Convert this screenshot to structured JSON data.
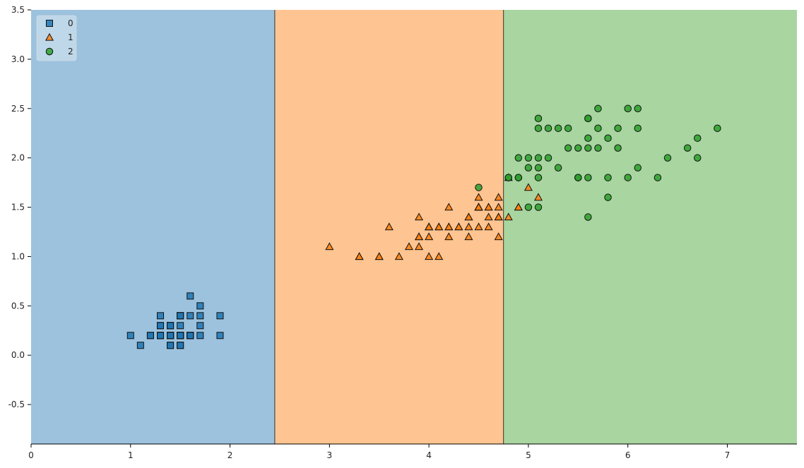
{
  "chart_data": {
    "type": "scatter",
    "title": "",
    "xlabel": "",
    "ylabel": "",
    "xlim": [
      0,
      7.7
    ],
    "ylim": [
      -0.9,
      3.5
    ],
    "grid": false,
    "legend_position": "top-left",
    "x_ticks": [
      0,
      1,
      2,
      3,
      4,
      5,
      6,
      7
    ],
    "y_ticks": [
      -0.5,
      0.0,
      0.5,
      1.0,
      1.5,
      2.0,
      2.5,
      3.0,
      3.5
    ],
    "x_tick_labels": [
      "0",
      "1",
      "2",
      "3",
      "4",
      "5",
      "6",
      "7"
    ],
    "y_tick_labels": [
      "-0.5",
      "0.0",
      "0.5",
      "1.0",
      "1.5",
      "2.0",
      "2.5",
      "3.0",
      "3.5"
    ],
    "decision_regions": [
      {
        "class": "0",
        "x_from": 0,
        "x_to": 2.45,
        "color": "#9cc2de"
      },
      {
        "class": "1",
        "x_from": 2.45,
        "x_to": 4.75,
        "color": "#fec491"
      },
      {
        "class": "2",
        "x_from": 4.75,
        "x_to": 7.7,
        "color": "#a8d5a0"
      }
    ],
    "series": [
      {
        "name": "0",
        "marker": "square",
        "color": "#1f77b4",
        "points": [
          [
            1.4,
            0.2
          ],
          [
            1.4,
            0.2
          ],
          [
            1.3,
            0.2
          ],
          [
            1.5,
            0.2
          ],
          [
            1.4,
            0.2
          ],
          [
            1.7,
            0.4
          ],
          [
            1.4,
            0.3
          ],
          [
            1.5,
            0.2
          ],
          [
            1.4,
            0.2
          ],
          [
            1.5,
            0.1
          ],
          [
            1.5,
            0.2
          ],
          [
            1.6,
            0.2
          ],
          [
            1.4,
            0.1
          ],
          [
            1.1,
            0.1
          ],
          [
            1.2,
            0.2
          ],
          [
            1.5,
            0.4
          ],
          [
            1.3,
            0.4
          ],
          [
            1.4,
            0.3
          ],
          [
            1.7,
            0.3
          ],
          [
            1.5,
            0.3
          ],
          [
            1.7,
            0.2
          ],
          [
            1.5,
            0.4
          ],
          [
            1.0,
            0.2
          ],
          [
            1.7,
            0.5
          ],
          [
            1.9,
            0.2
          ],
          [
            1.6,
            0.2
          ],
          [
            1.6,
            0.4
          ],
          [
            1.5,
            0.2
          ],
          [
            1.4,
            0.2
          ],
          [
            1.6,
            0.2
          ],
          [
            1.6,
            0.2
          ],
          [
            1.5,
            0.4
          ],
          [
            1.5,
            0.1
          ],
          [
            1.4,
            0.2
          ],
          [
            1.5,
            0.2
          ],
          [
            1.2,
            0.2
          ],
          [
            1.3,
            0.2
          ],
          [
            1.4,
            0.1
          ],
          [
            1.3,
            0.2
          ],
          [
            1.5,
            0.2
          ],
          [
            1.3,
            0.3
          ],
          [
            1.3,
            0.3
          ],
          [
            1.3,
            0.2
          ],
          [
            1.6,
            0.6
          ],
          [
            1.9,
            0.4
          ],
          [
            1.4,
            0.3
          ],
          [
            1.6,
            0.2
          ],
          [
            1.4,
            0.2
          ],
          [
            1.5,
            0.2
          ],
          [
            1.4,
            0.2
          ]
        ]
      },
      {
        "name": "1",
        "marker": "triangle",
        "color": "#ff7f0e",
        "points": [
          [
            4.7,
            1.4
          ],
          [
            4.5,
            1.5
          ],
          [
            4.9,
            1.5
          ],
          [
            4.0,
            1.3
          ],
          [
            4.6,
            1.5
          ],
          [
            4.5,
            1.3
          ],
          [
            4.7,
            1.6
          ],
          [
            3.3,
            1.0
          ],
          [
            4.6,
            1.3
          ],
          [
            3.9,
            1.4
          ],
          [
            3.5,
            1.0
          ],
          [
            4.2,
            1.5
          ],
          [
            4.0,
            1.0
          ],
          [
            4.7,
            1.4
          ],
          [
            3.6,
            1.3
          ],
          [
            4.4,
            1.4
          ],
          [
            4.5,
            1.5
          ],
          [
            4.1,
            1.0
          ],
          [
            4.5,
            1.5
          ],
          [
            3.9,
            1.1
          ],
          [
            4.8,
            1.8
          ],
          [
            4.0,
            1.3
          ],
          [
            4.9,
            1.5
          ],
          [
            4.7,
            1.2
          ],
          [
            4.3,
            1.3
          ],
          [
            4.4,
            1.4
          ],
          [
            4.8,
            1.4
          ],
          [
            5.0,
            1.7
          ],
          [
            4.5,
            1.5
          ],
          [
            3.5,
            1.0
          ],
          [
            3.8,
            1.1
          ],
          [
            3.7,
            1.0
          ],
          [
            3.9,
            1.2
          ],
          [
            5.1,
            1.6
          ],
          [
            4.5,
            1.5
          ],
          [
            4.5,
            1.6
          ],
          [
            4.7,
            1.5
          ],
          [
            4.4,
            1.3
          ],
          [
            4.1,
            1.3
          ],
          [
            4.0,
            1.3
          ],
          [
            4.4,
            1.2
          ],
          [
            4.6,
            1.4
          ],
          [
            4.0,
            1.2
          ],
          [
            3.3,
            1.0
          ],
          [
            4.2,
            1.3
          ],
          [
            4.2,
            1.2
          ],
          [
            4.2,
            1.3
          ],
          [
            4.3,
            1.3
          ],
          [
            3.0,
            1.1
          ],
          [
            4.1,
            1.3
          ],
          [
            3.9,
            1.2
          ],
          [
            4.6,
            1.5
          ],
          [
            4.5,
            1.5
          ]
        ]
      },
      {
        "name": "2",
        "marker": "circle",
        "color": "#2ca02c",
        "points": [
          [
            6.0,
            2.5
          ],
          [
            5.1,
            1.9
          ],
          [
            5.9,
            2.1
          ],
          [
            5.6,
            1.8
          ],
          [
            5.8,
            2.2
          ],
          [
            6.6,
            2.1
          ],
          [
            4.5,
            1.7
          ],
          [
            6.3,
            1.8
          ],
          [
            5.8,
            1.8
          ],
          [
            6.1,
            2.5
          ],
          [
            5.1,
            2.0
          ],
          [
            5.3,
            1.9
          ],
          [
            5.5,
            2.1
          ],
          [
            5.0,
            2.0
          ],
          [
            5.1,
            2.4
          ],
          [
            5.3,
            2.3
          ],
          [
            5.5,
            1.8
          ],
          [
            6.7,
            2.2
          ],
          [
            6.9,
            2.3
          ],
          [
            5.0,
            1.5
          ],
          [
            5.7,
            2.3
          ],
          [
            4.9,
            2.0
          ],
          [
            6.7,
            2.0
          ],
          [
            4.9,
            1.8
          ],
          [
            5.7,
            2.1
          ],
          [
            6.0,
            1.8
          ],
          [
            4.8,
            1.8
          ],
          [
            4.9,
            1.8
          ],
          [
            5.6,
            2.1
          ],
          [
            5.8,
            1.6
          ],
          [
            6.1,
            1.9
          ],
          [
            6.4,
            2.0
          ],
          [
            5.6,
            2.2
          ],
          [
            5.1,
            1.5
          ],
          [
            5.6,
            1.4
          ],
          [
            6.1,
            2.3
          ],
          [
            5.6,
            2.4
          ],
          [
            5.5,
            1.8
          ],
          [
            4.8,
            1.8
          ],
          [
            5.4,
            2.1
          ],
          [
            5.6,
            2.4
          ],
          [
            5.1,
            2.3
          ],
          [
            5.9,
            2.3
          ],
          [
            5.7,
            2.5
          ],
          [
            5.2,
            2.3
          ],
          [
            5.0,
            1.9
          ],
          [
            5.2,
            2.0
          ],
          [
            5.4,
            2.3
          ],
          [
            5.1,
            1.8
          ]
        ]
      }
    ]
  }
}
